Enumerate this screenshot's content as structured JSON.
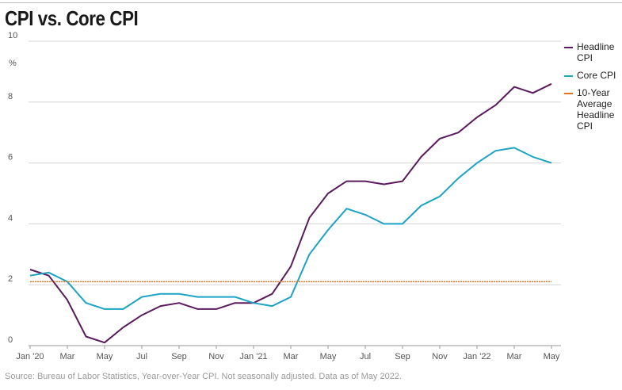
{
  "title": "CPI vs. Core CPI",
  "source": "Source: Bureau of Labor Statistics, Year-over-Year CPI. Not seasonally adjusted. Data as of May 2022.",
  "chart_data": {
    "type": "line",
    "title": "CPI vs. Core CPI",
    "ylabel": "%",
    "ylim": [
      0,
      10
    ],
    "yticks": [
      0,
      2,
      4,
      6,
      8,
      10
    ],
    "grid": "horizontal",
    "legend_position": "right",
    "x": [
      "Jan '20",
      "Feb '20",
      "Mar '20",
      "Apr '20",
      "May '20",
      "Jun '20",
      "Jul '20",
      "Aug '20",
      "Sep '20",
      "Oct '20",
      "Nov '20",
      "Dec '20",
      "Jan '21",
      "Feb '21",
      "Mar '21",
      "Apr '21",
      "May '21",
      "Jun '21",
      "Jul '21",
      "Aug '21",
      "Sep '21",
      "Oct '21",
      "Nov '21",
      "Dec '21",
      "Jan '22",
      "Feb '22",
      "Mar '22",
      "Apr '22",
      "May '22"
    ],
    "xtick_labels": [
      "Jan '20",
      "Mar",
      "May",
      "Jul",
      "Sep",
      "Nov",
      "Jan '21",
      "Mar",
      "May",
      "Jul",
      "Sep",
      "Nov",
      "Jan '22",
      "Mar",
      "May"
    ],
    "series": [
      {
        "name": "Headline CPI",
        "color": "#5b1a5e",
        "values": [
          2.5,
          2.3,
          1.5,
          0.3,
          0.1,
          0.6,
          1.0,
          1.3,
          1.4,
          1.2,
          1.2,
          1.4,
          1.4,
          1.7,
          2.6,
          4.2,
          5.0,
          5.4,
          5.4,
          5.3,
          5.4,
          6.2,
          6.8,
          7.0,
          7.5,
          7.9,
          8.5,
          8.3,
          8.6
        ]
      },
      {
        "name": "Core CPI",
        "color": "#1ba3c6",
        "values": [
          2.3,
          2.4,
          2.1,
          1.4,
          1.2,
          1.2,
          1.6,
          1.7,
          1.7,
          1.6,
          1.6,
          1.6,
          1.4,
          1.3,
          1.6,
          3.0,
          3.8,
          4.5,
          4.3,
          4.0,
          4.0,
          4.6,
          4.9,
          5.5,
          6.0,
          6.4,
          6.5,
          6.2,
          6.0
        ]
      },
      {
        "name": "10-Year Average Headline CPI",
        "color": "#e8731f",
        "dashed": true,
        "values": [
          2.1,
          2.1,
          2.1,
          2.1,
          2.1,
          2.1,
          2.1,
          2.1,
          2.1,
          2.1,
          2.1,
          2.1,
          2.1,
          2.1,
          2.1,
          2.1,
          2.1,
          2.1,
          2.1,
          2.1,
          2.1,
          2.1,
          2.1,
          2.1,
          2.1,
          2.1,
          2.1,
          2.1,
          2.1
        ]
      }
    ]
  },
  "legend": [
    {
      "label": "Headline CPI",
      "color": "#5b1a5e"
    },
    {
      "label": "Core CPI",
      "color": "#1ba3c6"
    },
    {
      "label": "10-Year Average Headline CPI",
      "color": "#e8731f"
    }
  ]
}
